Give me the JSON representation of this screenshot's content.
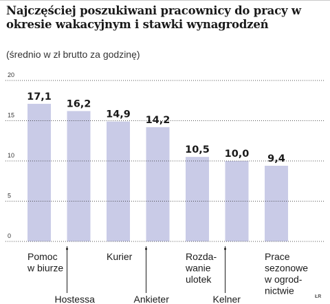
{
  "title": "Najczęściej poszukiwani pracownicy do pracy w okresie wakacyjnym i stawki wynagrodzeń",
  "subtitle": "(średnio w zł brutto za godzinę)",
  "credit": "ŁR",
  "colors": {
    "bar": "#c9cbe7",
    "grid": "#1a1a1a",
    "text": "#1a1a1a"
  },
  "chart_data": {
    "type": "bar",
    "ylim": [
      0,
      20
    ],
    "yticks": [
      0,
      5,
      10,
      15,
      20
    ],
    "grid": true,
    "categories": [
      {
        "lines": [
          "Pomoc",
          "w biurze"
        ],
        "row": "upper"
      },
      {
        "lines": [
          "Hostessa"
        ],
        "row": "lower"
      },
      {
        "lines": [
          "Kurier"
        ],
        "row": "upper"
      },
      {
        "lines": [
          "Ankieter"
        ],
        "row": "lower"
      },
      {
        "lines": [
          "Rozda-",
          "wanie",
          "ulotek"
        ],
        "row": "upper"
      },
      {
        "lines": [
          "Kelner"
        ],
        "row": "lower"
      },
      {
        "lines": [
          "Prace",
          "sezonowe",
          "w ogrod-",
          "nictwie"
        ],
        "row": "upper"
      }
    ],
    "values": [
      17.1,
      16.2,
      14.9,
      14.2,
      10.5,
      10.0,
      9.4
    ],
    "value_labels": [
      "17,1",
      "16,2",
      "14,9",
      "14,2",
      "10,5",
      "10,0",
      "9,4"
    ]
  }
}
